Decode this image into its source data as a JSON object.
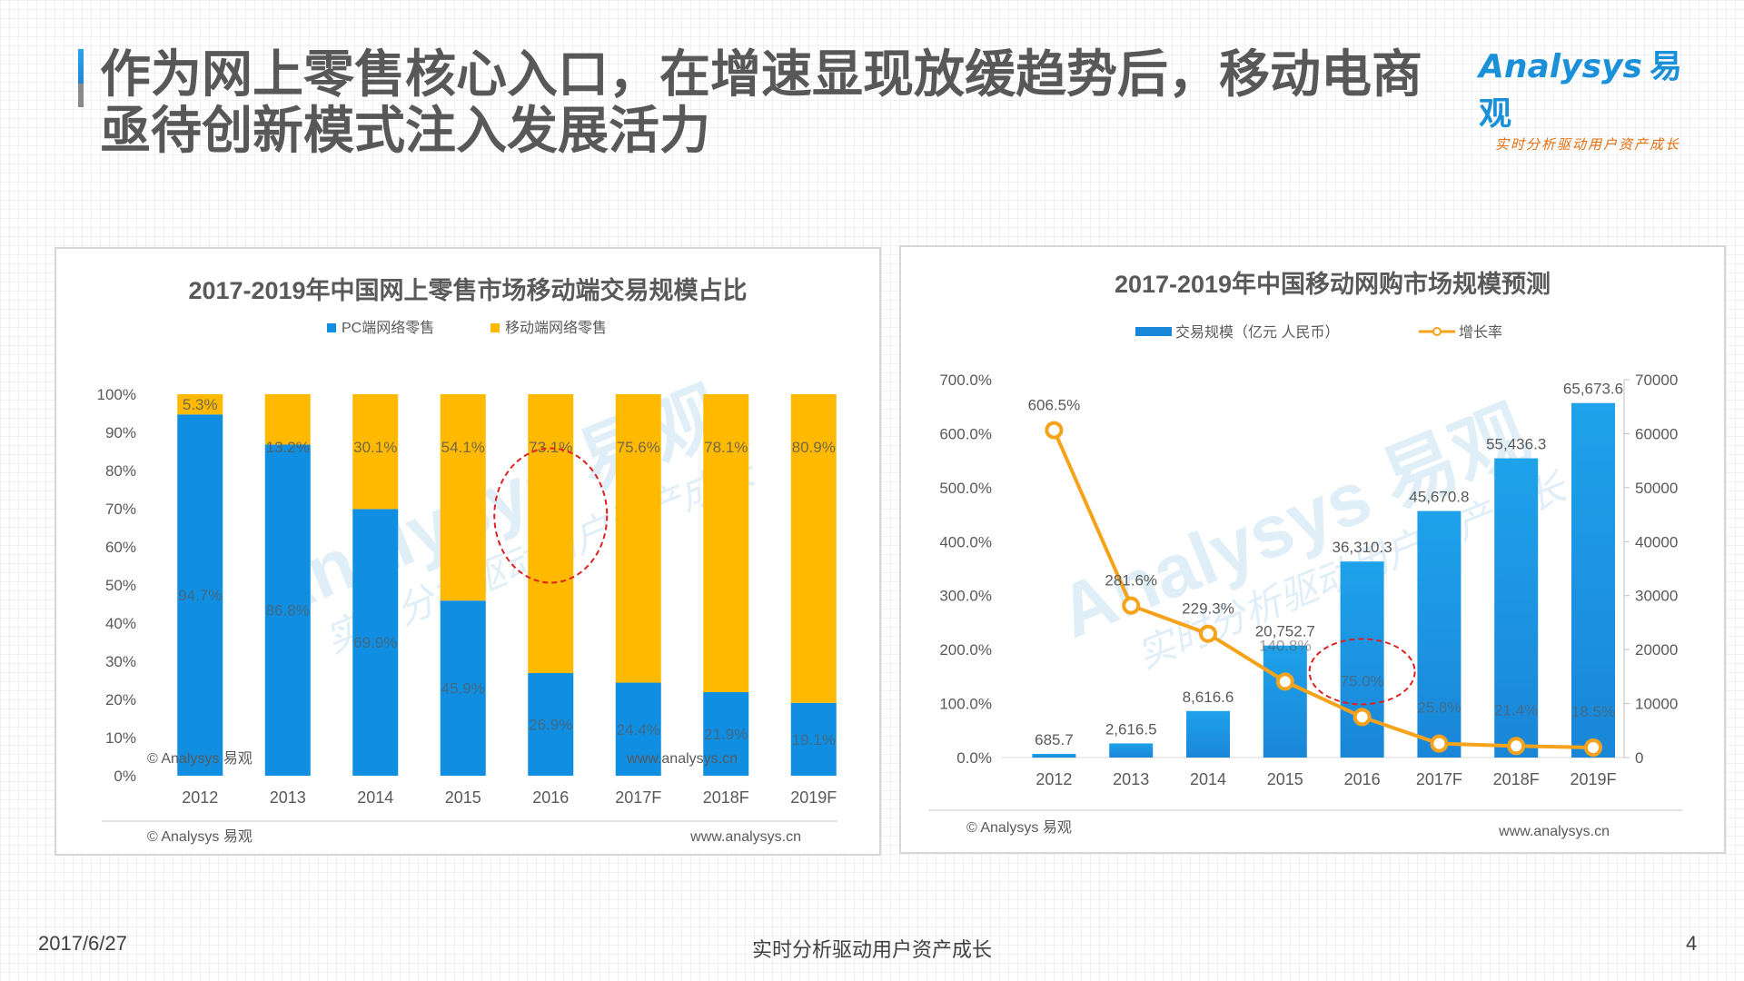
{
  "header": {
    "title_line1": "作为网上零售核心入口，在增速显现放缓趋势后，移动电商",
    "title_line2": "亟待创新模式注入发展活力"
  },
  "logo": {
    "text": "nalysys",
    "cn": "易观",
    "slogan": "实时分析驱动用户资产成长"
  },
  "watermark": {
    "text": "Analysys 易观",
    "slogan": "实时分析驱动用户资产成长"
  },
  "footer": {
    "date": "2017/6/27",
    "center": "实时分析驱动用户资产成长",
    "page": "4"
  },
  "chart_data": [
    {
      "type": "bar",
      "stacked": true,
      "title": "2017-2019年中国网上零售市场移动端交易规模占比",
      "categories": [
        "2012",
        "2013",
        "2014",
        "2015",
        "2016",
        "2017F",
        "2018F",
        "2019F"
      ],
      "series": [
        {
          "name": "PC端网络零售",
          "color": "#0f8ee2",
          "values": [
            94.7,
            86.8,
            69.9,
            45.9,
            26.9,
            24.4,
            21.9,
            19.1
          ],
          "labels": [
            "94.7%",
            "86.8%",
            "69.9%",
            "45.9%",
            "26.9%",
            "24.4%",
            "21.9%",
            "19.1%"
          ]
        },
        {
          "name": "移动端网络零售",
          "color": "#ffba00",
          "values": [
            5.3,
            13.2,
            30.1,
            54.1,
            73.1,
            75.6,
            78.1,
            80.9
          ],
          "labels": [
            "5.3%",
            "13.2%",
            "30.1%",
            "54.1%",
            "73.1%",
            "75.6%",
            "78.1%",
            "80.9%"
          ]
        }
      ],
      "y_ticks": [
        "0%",
        "10%",
        "20%",
        "30%",
        "40%",
        "50%",
        "60%",
        "70%",
        "80%",
        "90%",
        "100%"
      ],
      "ylim": [
        0,
        100
      ],
      "legend": "top",
      "highlight_category": "2016",
      "source_left": "© Analysys 易观",
      "source_right": "www.analysys.cn"
    },
    {
      "type": "bar+line",
      "title": "2017-2019年中国移动网购市场规模预测",
      "categories": [
        "2012",
        "2013",
        "2014",
        "2015",
        "2016",
        "2017F",
        "2018F",
        "2019F"
      ],
      "series": [
        {
          "name": "交易规模（亿元 人民币）",
          "type": "bar",
          "axis": "right",
          "color": "#1a86d8",
          "values": [
            685.7,
            2616.5,
            8616.6,
            20752.7,
            36310.3,
            45670.8,
            55436.3,
            65673.6
          ],
          "labels": [
            "685.7",
            "2,616.5",
            "8,616.6",
            "20,752.7",
            "36,310.3",
            "45,670.8",
            "55,436.3",
            "65,673.6"
          ]
        },
        {
          "name": "增长率",
          "type": "line",
          "axis": "left",
          "color": "#f7a21b",
          "values": [
            606.5,
            281.6,
            229.3,
            140.8,
            75.0,
            25.8,
            21.4,
            18.5
          ],
          "labels": [
            "606.5%",
            "281.6%",
            "229.3%",
            "140.8%",
            "75.0%",
            "25.8%",
            "21.4%",
            "18.5%"
          ]
        }
      ],
      "left_ticks": [
        "0.0%",
        "100.0%",
        "200.0%",
        "300.0%",
        "400.0%",
        "500.0%",
        "600.0%",
        "700.0%"
      ],
      "right_ticks": [
        "0",
        "10000",
        "20000",
        "30000",
        "40000",
        "50000",
        "60000",
        "70000"
      ],
      "ylim_left": [
        0,
        700
      ],
      "ylim_right": [
        0,
        70000
      ],
      "legend": "top",
      "highlight_category": "2016",
      "source_left": "© Analysys 易观",
      "source_right": "www.analysys.cn"
    }
  ]
}
